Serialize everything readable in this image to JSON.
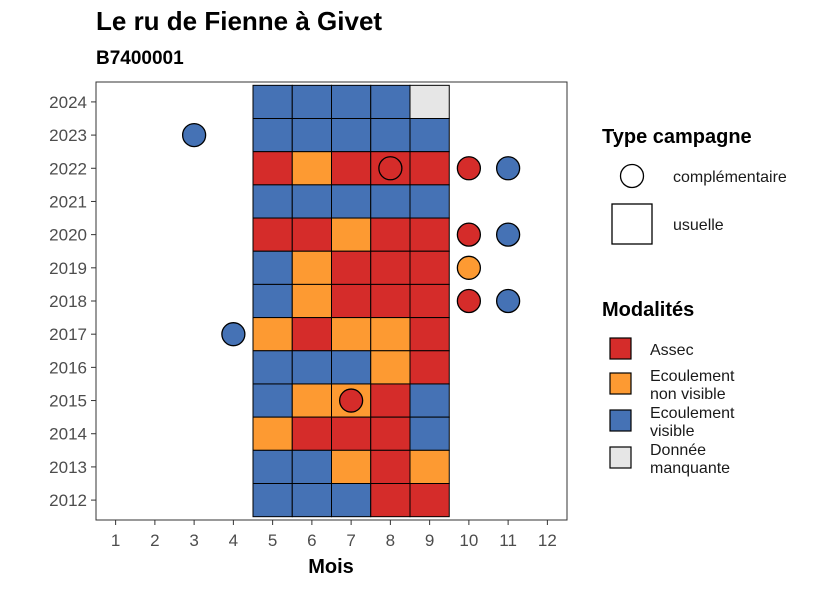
{
  "chart_data": {
    "type": "heatmap",
    "title": "Le ru de Fienne à Givet",
    "subtitle": "B7400001",
    "xlabel": "Mois",
    "ylabel": "",
    "x_ticks": [
      1,
      2,
      3,
      4,
      5,
      6,
      7,
      8,
      9,
      10,
      11,
      12
    ],
    "y_ticks": [
      2012,
      2013,
      2014,
      2015,
      2016,
      2017,
      2018,
      2019,
      2020,
      2021,
      2022,
      2023,
      2024
    ],
    "xlim": [
      0.5,
      12.5
    ],
    "ylim": [
      2011.4,
      2024.6
    ],
    "colors": {
      "Assec": "#d52c2a",
      "Ecoulement non visible": "#fd9a32",
      "Ecoulement visible": "#4572b5",
      "Donnée manquante": "#e6e6e6"
    },
    "legend_type": {
      "title": "Type campagne",
      "items": [
        {
          "shape": "circle",
          "label": "complémentaire"
        },
        {
          "shape": "square",
          "label": "usuelle"
        }
      ]
    },
    "legend_modalites": {
      "title": "Modalités",
      "items": [
        {
          "key": "Assec",
          "lines": [
            "Assec"
          ]
        },
        {
          "key": "Ecoulement non visible",
          "lines": [
            "Ecoulement",
            "non visible"
          ]
        },
        {
          "key": "Ecoulement visible",
          "lines": [
            "Ecoulement",
            "visible"
          ]
        },
        {
          "key": "Donnée manquante",
          "lines": [
            "Donnée",
            "manquante"
          ]
        }
      ]
    },
    "usuelle": [
      {
        "year": 2024,
        "months": {
          "5": "Ecoulement visible",
          "6": "Ecoulement visible",
          "7": "Ecoulement visible",
          "8": "Ecoulement visible",
          "9": "Donnée manquante"
        }
      },
      {
        "year": 2023,
        "months": {
          "5": "Ecoulement visible",
          "6": "Ecoulement visible",
          "7": "Ecoulement visible",
          "8": "Ecoulement visible",
          "9": "Ecoulement visible"
        }
      },
      {
        "year": 2022,
        "months": {
          "5": "Assec",
          "6": "Ecoulement non visible",
          "7": "Assec",
          "8": "Assec",
          "9": "Assec"
        }
      },
      {
        "year": 2021,
        "months": {
          "5": "Ecoulement visible",
          "6": "Ecoulement visible",
          "7": "Ecoulement visible",
          "8": "Ecoulement visible",
          "9": "Ecoulement visible"
        }
      },
      {
        "year": 2020,
        "months": {
          "5": "Assec",
          "6": "Assec",
          "7": "Ecoulement non visible",
          "8": "Assec",
          "9": "Assec"
        }
      },
      {
        "year": 2019,
        "months": {
          "5": "Ecoulement visible",
          "6": "Ecoulement non visible",
          "7": "Assec",
          "8": "Assec",
          "9": "Assec"
        }
      },
      {
        "year": 2018,
        "months": {
          "5": "Ecoulement visible",
          "6": "Ecoulement non visible",
          "7": "Assec",
          "8": "Assec",
          "9": "Assec"
        }
      },
      {
        "year": 2017,
        "months": {
          "5": "Ecoulement non visible",
          "6": "Assec",
          "7": "Ecoulement non visible",
          "8": "Ecoulement non visible",
          "9": "Assec"
        }
      },
      {
        "year": 2016,
        "months": {
          "5": "Ecoulement visible",
          "6": "Ecoulement visible",
          "7": "Ecoulement visible",
          "8": "Ecoulement non visible",
          "9": "Assec"
        }
      },
      {
        "year": 2015,
        "months": {
          "5": "Ecoulement visible",
          "6": "Ecoulement non visible",
          "7": "Ecoulement non visible",
          "8": "Assec",
          "9": "Ecoulement visible"
        }
      },
      {
        "year": 2014,
        "months": {
          "5": "Ecoulement non visible",
          "6": "Assec",
          "7": "Assec",
          "8": "Assec",
          "9": "Ecoulement visible"
        }
      },
      {
        "year": 2013,
        "months": {
          "5": "Ecoulement visible",
          "6": "Ecoulement visible",
          "7": "Ecoulement non visible",
          "8": "Assec",
          "9": "Ecoulement non visible"
        }
      },
      {
        "year": 2012,
        "months": {
          "5": "Ecoulement visible",
          "6": "Ecoulement visible",
          "7": "Ecoulement visible",
          "8": "Assec",
          "9": "Assec"
        }
      }
    ],
    "complementaire": [
      {
        "year": 2023,
        "month": 3,
        "value": "Ecoulement visible"
      },
      {
        "year": 2022,
        "month": 8,
        "value": "Assec"
      },
      {
        "year": 2022,
        "month": 10,
        "value": "Assec"
      },
      {
        "year": 2022,
        "month": 11,
        "value": "Ecoulement visible"
      },
      {
        "year": 2020,
        "month": 10,
        "value": "Assec"
      },
      {
        "year": 2020,
        "month": 11,
        "value": "Ecoulement visible"
      },
      {
        "year": 2019,
        "month": 10,
        "value": "Ecoulement non visible"
      },
      {
        "year": 2018,
        "month": 10,
        "value": "Assec"
      },
      {
        "year": 2018,
        "month": 11,
        "value": "Ecoulement visible"
      },
      {
        "year": 2017,
        "month": 4,
        "value": "Ecoulement visible"
      },
      {
        "year": 2015,
        "month": 7,
        "value": "Assec"
      }
    ]
  }
}
